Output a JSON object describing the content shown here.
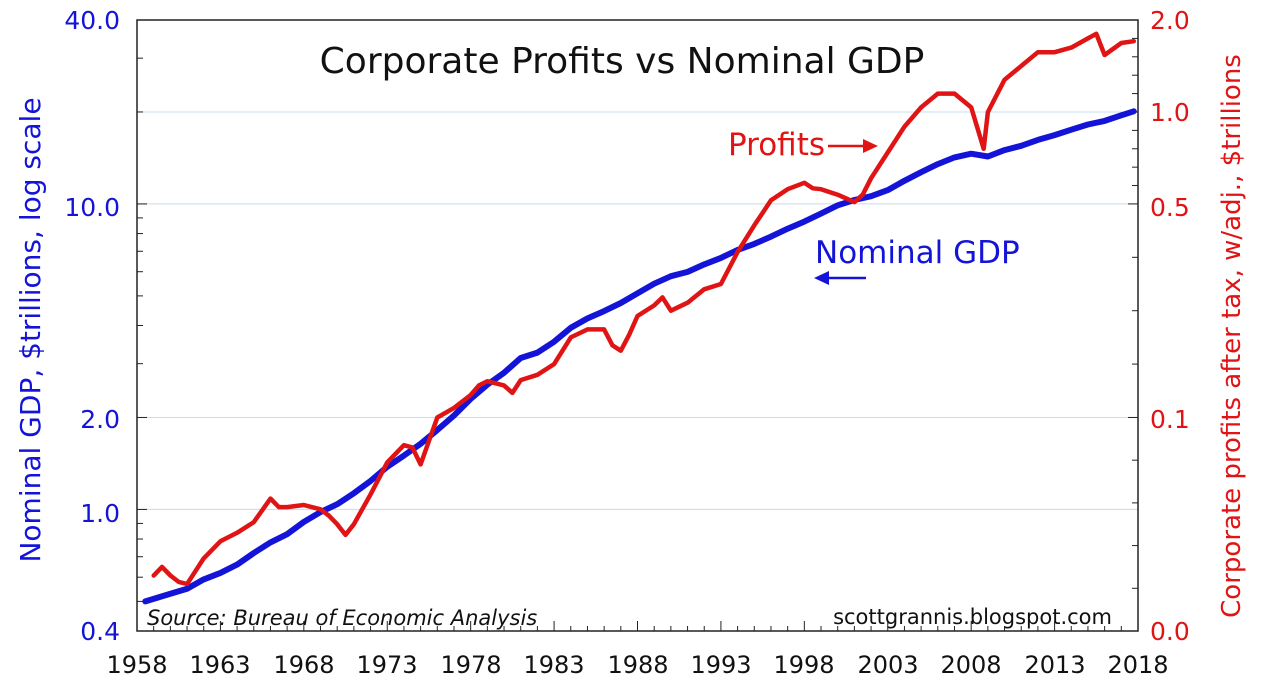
{
  "chart_data": {
    "type": "line",
    "title": "Corporate Profits vs Nominal GDP",
    "ylabel_left": "Nominal GDP, $trillions, log scale",
    "ylabel_right": "Corporate profits after tax, w/adj., $trillions",
    "y_left_scale": "log",
    "y_left_range": [
      0.4,
      40.0
    ],
    "y_left_ticks": [
      "40.0",
      "10.0",
      "2.0",
      "1.0",
      "0.4"
    ],
    "y_right_range": [
      0.0,
      2.0
    ],
    "y_right_ticks": [
      "2.0",
      "1.0",
      "0.5",
      "0.1",
      "0.0"
    ],
    "x_range": [
      1958,
      2018
    ],
    "x_ticks": [
      "1958",
      "1963",
      "1968",
      "1973",
      "1978",
      "1983",
      "1988",
      "1993",
      "1998",
      "2003",
      "2008",
      "2013",
      "2018"
    ],
    "grid": "horizontal",
    "source": "Source: Bureau of Economic Analysis",
    "credit": "scottgrannis.blogspot.com",
    "annotations": {
      "profits": "Profits",
      "gdp": "Nominal GDP"
    },
    "colors": {
      "gdp": "#1414d8",
      "profits": "#e01414",
      "grid": "#c7dcec"
    },
    "series": [
      {
        "name": "Nominal GDP",
        "axis": "left",
        "x": [
          1958.5,
          1960,
          1961,
          1962,
          1963,
          1964,
          1965,
          1966,
          1967,
          1968,
          1969,
          1970,
          1971,
          1972,
          1973,
          1974,
          1975,
          1976,
          1977,
          1978,
          1979,
          1980,
          1981,
          1982,
          1983,
          1984,
          1985,
          1986,
          1987,
          1988,
          1989,
          1990,
          1991,
          1992,
          1993,
          1994,
          1995,
          1996,
          1997,
          1998,
          1999,
          2000,
          2001,
          2002,
          2003,
          2004,
          2005,
          2006,
          2007,
          2008,
          2009,
          2010,
          2011,
          2012,
          2013,
          2014,
          2015,
          2016,
          2017,
          2017.75
        ],
        "values": [
          0.5,
          0.53,
          0.55,
          0.59,
          0.62,
          0.66,
          0.72,
          0.78,
          0.83,
          0.91,
          0.98,
          1.04,
          1.13,
          1.24,
          1.38,
          1.5,
          1.64,
          1.82,
          2.03,
          2.3,
          2.56,
          2.8,
          3.13,
          3.26,
          3.54,
          3.93,
          4.22,
          4.46,
          4.74,
          5.1,
          5.48,
          5.8,
          5.99,
          6.34,
          6.66,
          7.07,
          7.4,
          7.82,
          8.3,
          8.75,
          9.3,
          9.9,
          10.3,
          10.6,
          11.1,
          11.9,
          12.7,
          13.5,
          14.2,
          14.6,
          14.3,
          15.0,
          15.5,
          16.2,
          16.8,
          17.5,
          18.2,
          18.7,
          19.5,
          20.1
        ]
      },
      {
        "name": "Profits",
        "axis": "right",
        "x": [
          1959,
          1959.5,
          1960,
          1960.5,
          1961,
          1961.5,
          1962,
          1963,
          1964,
          1965,
          1966,
          1966.5,
          1967,
          1968,
          1969,
          1969.5,
          1970,
          1970.5,
          1971,
          1972,
          1973,
          1974,
          1974.5,
          1975,
          1976,
          1977,
          1978,
          1978.5,
          1979,
          1980,
          1980.5,
          1981,
          1982,
          1983,
          1984,
          1985,
          1986,
          1986.5,
          1987,
          1987.5,
          1988,
          1989,
          1989.5,
          1990,
          1991,
          1992,
          1993,
          1994,
          1995,
          1996,
          1997,
          1998,
          1998.5,
          1999,
          2000,
          2001,
          2001.5,
          2002,
          2003,
          2004,
          2005,
          2006,
          2007,
          2008,
          2008.75,
          2009,
          2010,
          2011,
          2012,
          2013,
          2014,
          2015,
          2015.5,
          2016,
          2017,
          2017.75
        ],
        "values": [
          0.026,
          0.03,
          0.026,
          0.023,
          0.022,
          0.028,
          0.034,
          0.042,
          0.046,
          0.051,
          0.062,
          0.058,
          0.058,
          0.059,
          0.057,
          0.054,
          0.05,
          0.045,
          0.05,
          0.064,
          0.079,
          0.087,
          0.086,
          0.078,
          0.1,
          0.118,
          0.142,
          0.16,
          0.168,
          0.16,
          0.146,
          0.17,
          0.18,
          0.2,
          0.25,
          0.265,
          0.265,
          0.235,
          0.225,
          0.255,
          0.29,
          0.31,
          0.325,
          0.3,
          0.315,
          0.34,
          0.35,
          0.41,
          0.46,
          0.52,
          0.58,
          0.615,
          0.585,
          0.58,
          0.55,
          0.51,
          0.55,
          0.64,
          0.78,
          0.92,
          1.05,
          1.2,
          1.2,
          1.05,
          0.8,
          1.0,
          1.35,
          1.5,
          1.65,
          1.65,
          1.7,
          1.8,
          1.85,
          1.62,
          1.75,
          1.77
        ]
      }
    ]
  }
}
